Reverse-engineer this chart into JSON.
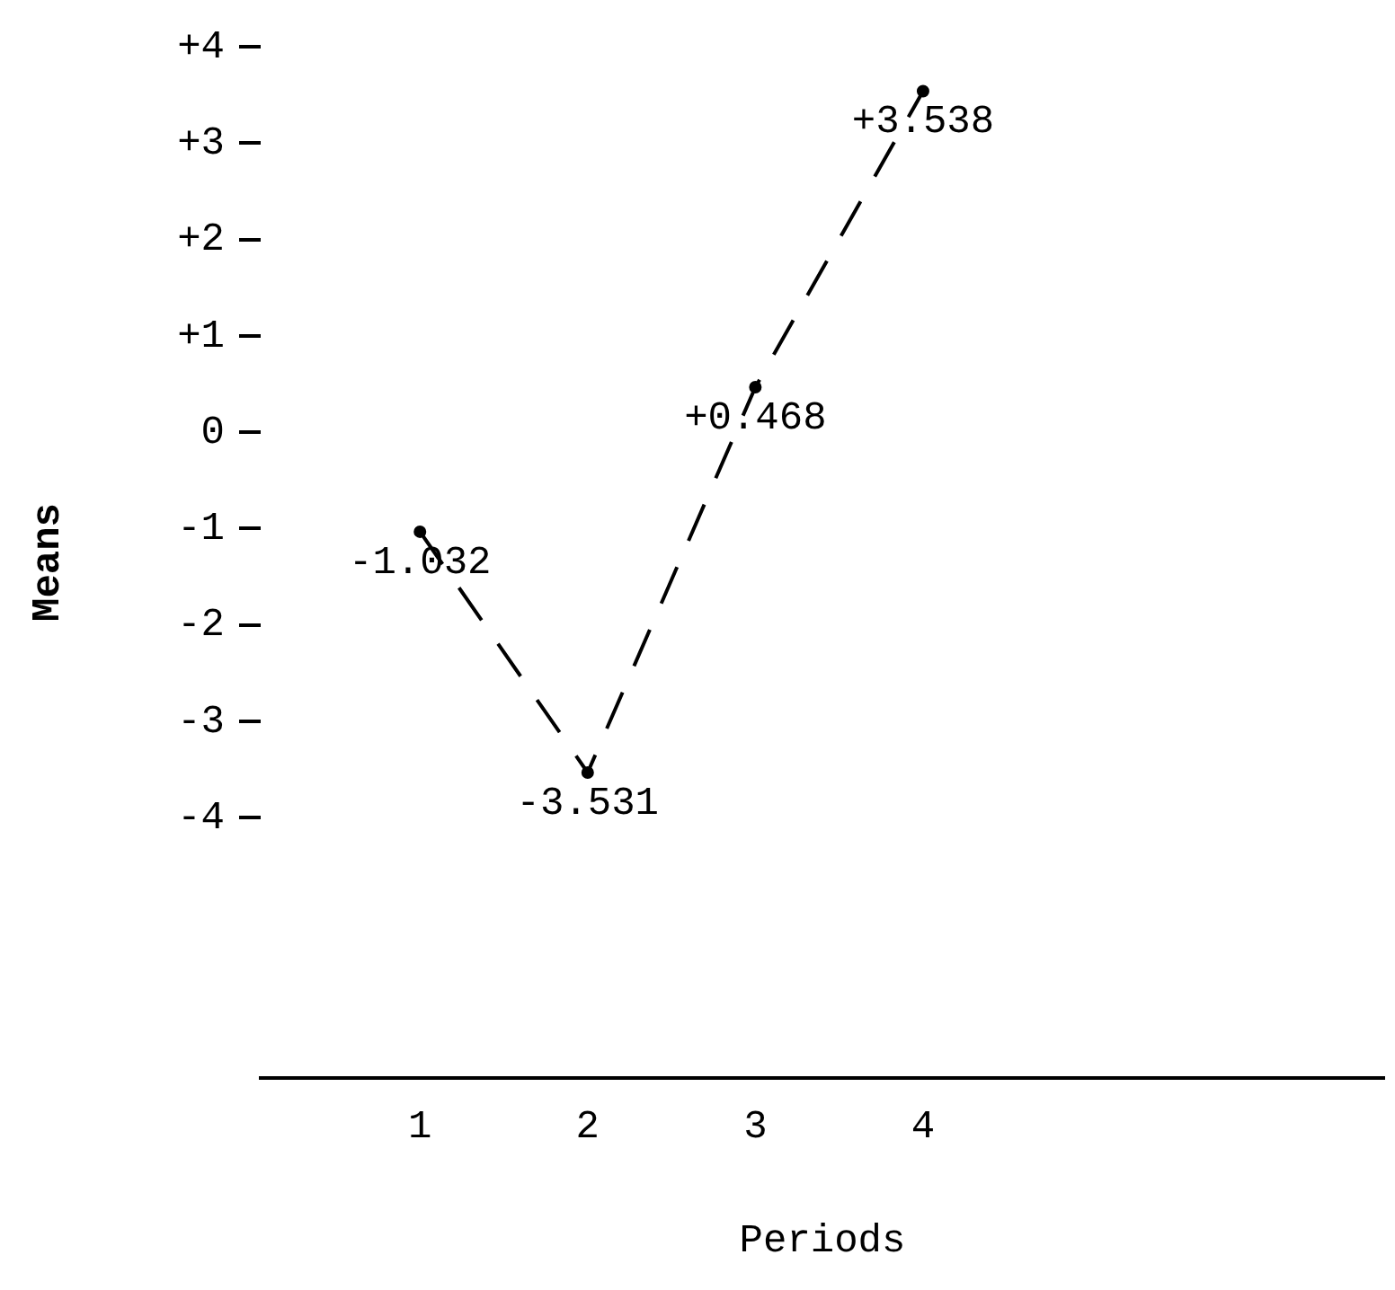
{
  "chart_data": {
    "type": "line",
    "xlabel": "Periods",
    "ylabel": "Means",
    "x": [
      1,
      2,
      3,
      4
    ],
    "xlim": [
      0.05,
      6.75
    ],
    "xticks": [
      1,
      2,
      3,
      4
    ],
    "ylim": [
      -6.7,
      4
    ],
    "yticks": [
      {
        "value": 4,
        "label": "+4"
      },
      {
        "value": 3,
        "label": "+3"
      },
      {
        "value": 2,
        "label": "+2"
      },
      {
        "value": 1,
        "label": "+1"
      },
      0,
      -1,
      -2,
      -3,
      -4
    ],
    "series": [
      {
        "color": "#000000",
        "values": [
          -1.032,
          -3.531,
          0.468,
          3.538
        ],
        "value_labels": [
          "-1.032",
          "-3.531",
          "+0.468",
          "+3.538"
        ]
      }
    ],
    "marker": "circle",
    "line_style": "dashed",
    "grid": false,
    "legend": false
  }
}
